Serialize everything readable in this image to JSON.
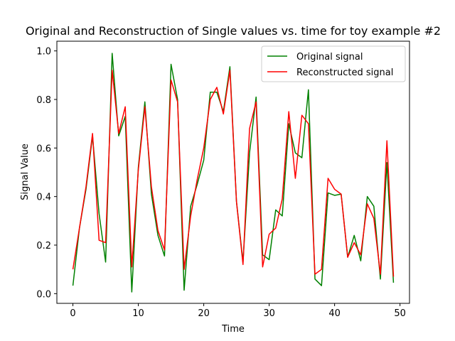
{
  "chart_data": {
    "type": "line",
    "title": "Original and Reconstruction of Single values vs. time for toy example #2",
    "xlabel": "Time",
    "ylabel": "Signal Value",
    "xlim": [
      -2.45,
      51.45
    ],
    "ylim": [
      -0.04,
      1.04
    ],
    "xticks": [
      0,
      10,
      20,
      30,
      40,
      50
    ],
    "yticks": [
      0.0,
      0.2,
      0.4,
      0.6,
      0.8,
      1.0
    ],
    "xtick_labels": [
      "0",
      "10",
      "20",
      "30",
      "40",
      "50"
    ],
    "ytick_labels": [
      "0.0",
      "0.2",
      "0.4",
      "0.6",
      "0.8",
      "1.0"
    ],
    "grid": false,
    "legend": {
      "position": "top-right"
    },
    "x": [
      0,
      1,
      2,
      3,
      4,
      5,
      6,
      7,
      8,
      9,
      10,
      11,
      12,
      13,
      14,
      15,
      16,
      17,
      18,
      19,
      20,
      21,
      22,
      23,
      24,
      25,
      26,
      27,
      28,
      29,
      30,
      31,
      32,
      33,
      34,
      35,
      36,
      37,
      38,
      39,
      40,
      41,
      42,
      43,
      44,
      45,
      46,
      47,
      48,
      49
    ],
    "series": [
      {
        "name": "Original signal",
        "color": "#008000",
        "values": [
          0.033,
          0.27,
          0.43,
          0.65,
          0.33,
          0.13,
          0.99,
          0.65,
          0.73,
          0.007,
          0.52,
          0.79,
          0.41,
          0.24,
          0.155,
          0.945,
          0.8,
          0.014,
          0.36,
          0.45,
          0.55,
          0.83,
          0.83,
          0.75,
          0.935,
          0.38,
          0.13,
          0.58,
          0.81,
          0.16,
          0.14,
          0.345,
          0.32,
          0.7,
          0.58,
          0.56,
          0.84,
          0.06,
          0.033,
          0.415,
          0.405,
          0.41,
          0.15,
          0.24,
          0.135,
          0.4,
          0.36,
          0.06,
          0.54,
          0.045
        ]
      },
      {
        "name": "Reconstructed signal",
        "color": "#ff0000",
        "values": [
          0.1,
          0.27,
          0.44,
          0.66,
          0.22,
          0.21,
          0.92,
          0.66,
          0.77,
          0.11,
          0.51,
          0.77,
          0.44,
          0.26,
          0.18,
          0.88,
          0.79,
          0.1,
          0.32,
          0.47,
          0.6,
          0.8,
          0.85,
          0.74,
          0.92,
          0.38,
          0.12,
          0.68,
          0.79,
          0.11,
          0.245,
          0.27,
          0.39,
          0.75,
          0.475,
          0.735,
          0.7,
          0.08,
          0.1,
          0.475,
          0.43,
          0.41,
          0.15,
          0.21,
          0.16,
          0.37,
          0.31,
          0.08,
          0.63,
          0.07
        ]
      }
    ]
  }
}
